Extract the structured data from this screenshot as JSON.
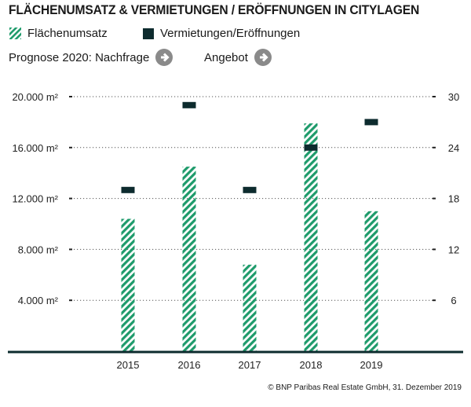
{
  "chart_data": {
    "type": "bar",
    "title": "FLÄCHENUMSATZ & VERMIETUNGEN / ERÖFFNUNGEN IN CITYLAGEN",
    "categories": [
      "2015",
      "2016",
      "2017",
      "2018",
      "2019"
    ],
    "series": [
      {
        "name": "Flächenumsatz",
        "axis": "left",
        "style": "hatched-bar",
        "color": "#1e9b6b",
        "values": [
          10400,
          14500,
          6800,
          17900,
          11000
        ]
      },
      {
        "name": "Vermietungen/Eröffnungen",
        "axis": "right",
        "style": "marker",
        "color": "#0d2b2e",
        "values": [
          19,
          29,
          19,
          24,
          27
        ]
      }
    ],
    "y_left": {
      "range": [
        0,
        20000
      ],
      "ticks": [
        4000,
        8000,
        12000,
        16000,
        20000
      ],
      "tick_labels": [
        "4.000 m²",
        "8.000 m²",
        "12.000 m²",
        "16.000 m²",
        "20.000 m²"
      ]
    },
    "y_right": {
      "range": [
        0,
        30
      ],
      "ticks": [
        6,
        12,
        18,
        24,
        30
      ],
      "tick_labels": [
        "6",
        "12",
        "18",
        "24",
        "30"
      ]
    },
    "grid": true,
    "legend_placement": "top-left"
  },
  "forecast": {
    "label": "Prognose 2020: Nachfrage",
    "second_label": "Angebot",
    "icon": "arrow-right-circle-icon"
  },
  "footer": "© BNP Paribas Real Estate GmbH, 31. Dezember 2019"
}
